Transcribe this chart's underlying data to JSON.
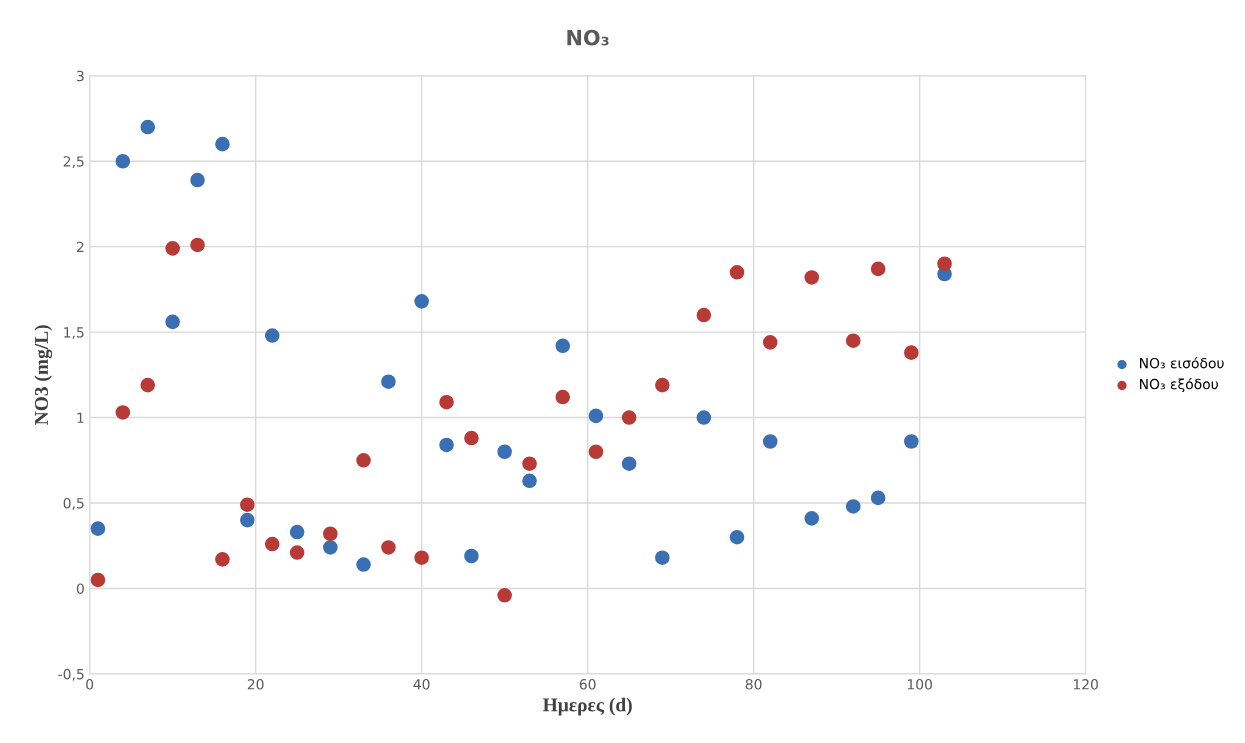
{
  "chart_data": {
    "type": "scatter",
    "title": "NO₃",
    "xlabel": "Ημερες (d)",
    "ylabel": "NO3 (mg/L)",
    "x": [
      1,
      4,
      7,
      10,
      13,
      16,
      19,
      22,
      25,
      29,
      33,
      36,
      40,
      43,
      46,
      50,
      53,
      57,
      61,
      65,
      69,
      74,
      78,
      82,
      87,
      92,
      95,
      99,
      103
    ],
    "series": [
      {
        "name": "NO₃ εισόδου",
        "color": "#3a6fb4",
        "values": [
          0.35,
          2.5,
          2.7,
          1.56,
          2.39,
          2.6,
          0.4,
          1.48,
          0.33,
          0.24,
          0.14,
          1.21,
          1.68,
          0.84,
          0.19,
          0.8,
          0.63,
          1.42,
          1.01,
          0.73,
          0.18,
          1.0,
          0.3,
          0.86,
          0.41,
          0.48,
          0.53,
          0.86,
          1.84
        ]
      },
      {
        "name": "NO₃ εξόδου",
        "color": "#b83a36",
        "values": [
          0.05,
          1.03,
          1.19,
          1.99,
          2.01,
          0.17,
          0.49,
          0.26,
          0.21,
          0.32,
          0.75,
          0.24,
          0.18,
          1.09,
          0.88,
          -0.04,
          0.73,
          1.12,
          0.8,
          1.0,
          1.19,
          1.6,
          1.85,
          1.44,
          1.82,
          1.45,
          1.87,
          1.38,
          1.9
        ]
      }
    ],
    "xlim": [
      0,
      120
    ],
    "xticks": [
      0,
      20,
      40,
      60,
      80,
      100,
      120
    ],
    "ylim": [
      -0.5,
      3
    ],
    "yticks": [
      {
        "value": -0.5,
        "label": "-0,5"
      },
      0,
      {
        "value": 0.5,
        "label": "0,5"
      },
      1,
      {
        "value": 1.5,
        "label": "1,5"
      },
      2,
      {
        "value": 2.5,
        "label": "2,5"
      },
      3
    ],
    "grid": true,
    "legend": "right",
    "marker": "circle"
  }
}
